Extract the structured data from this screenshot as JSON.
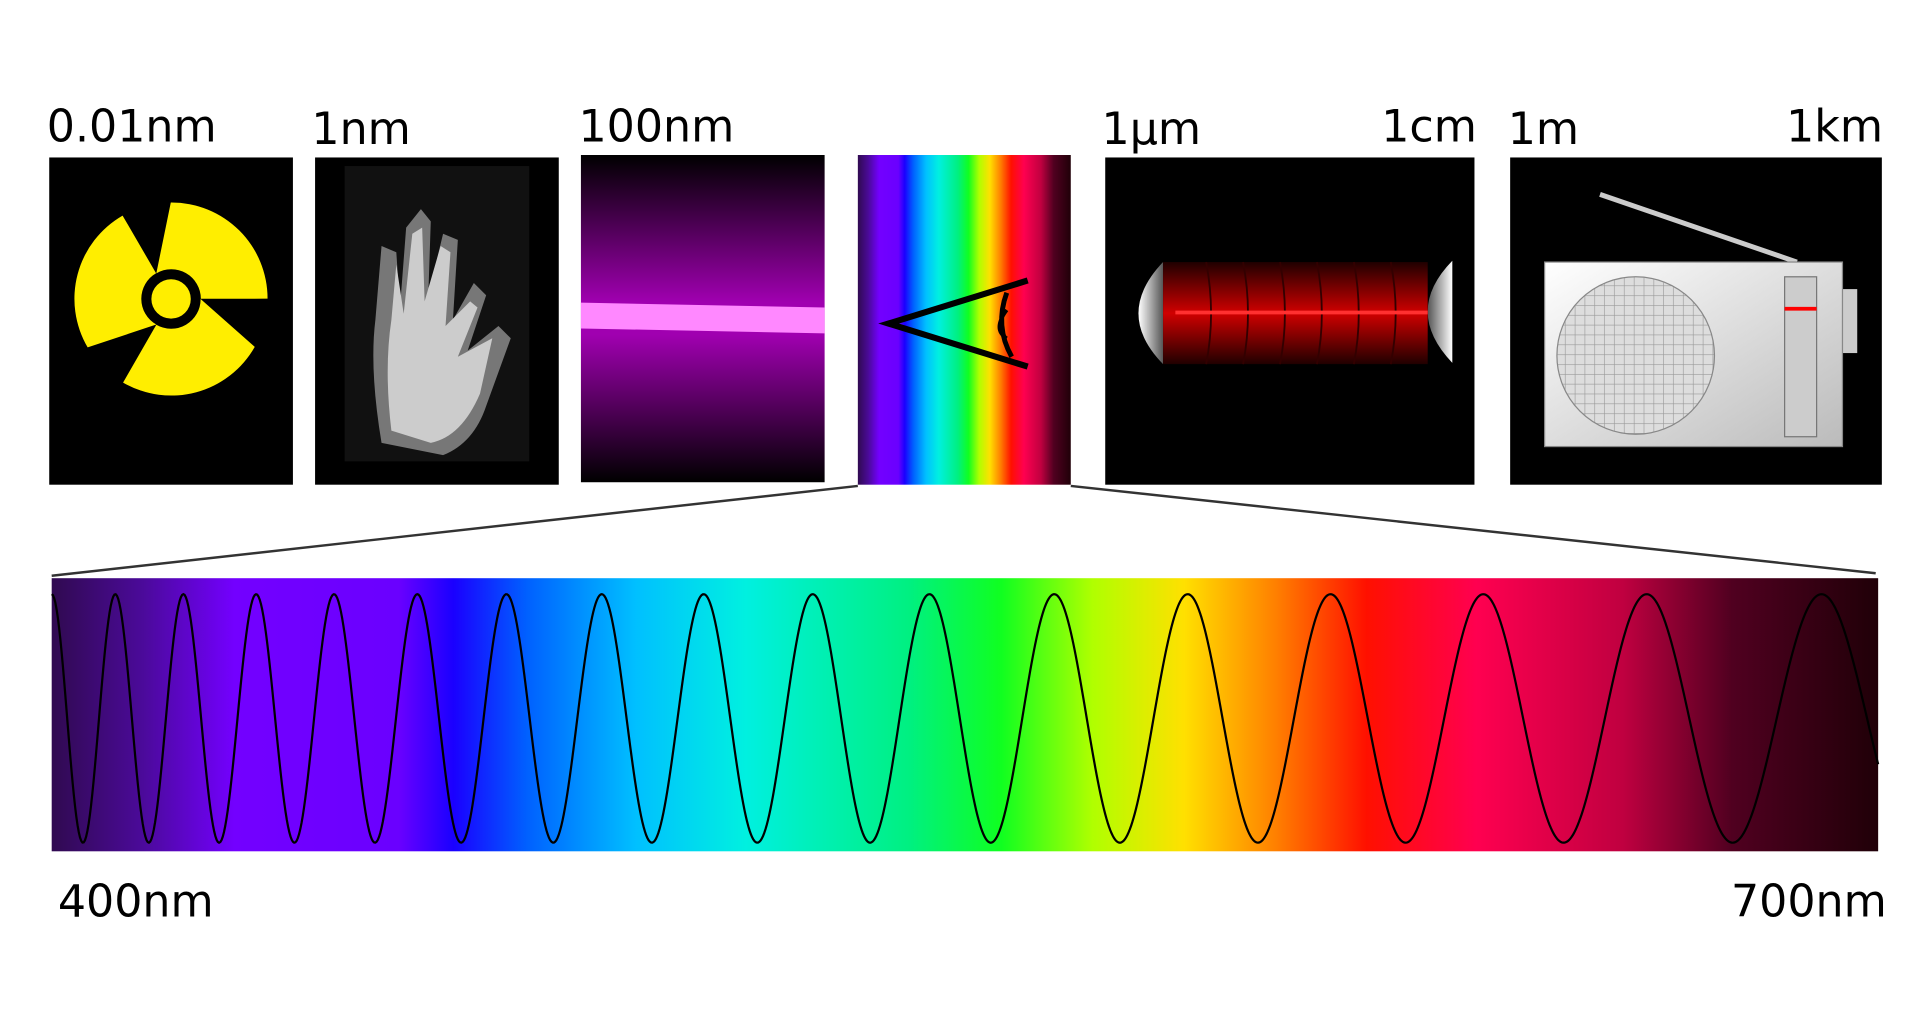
{
  "labels": [
    "0.01nm",
    "1nm",
    "100nm",
    "1µm",
    "1cm",
    "1m",
    "1km"
  ],
  "spectrum": {
    "start": "400nm",
    "end": "700nm"
  }
}
